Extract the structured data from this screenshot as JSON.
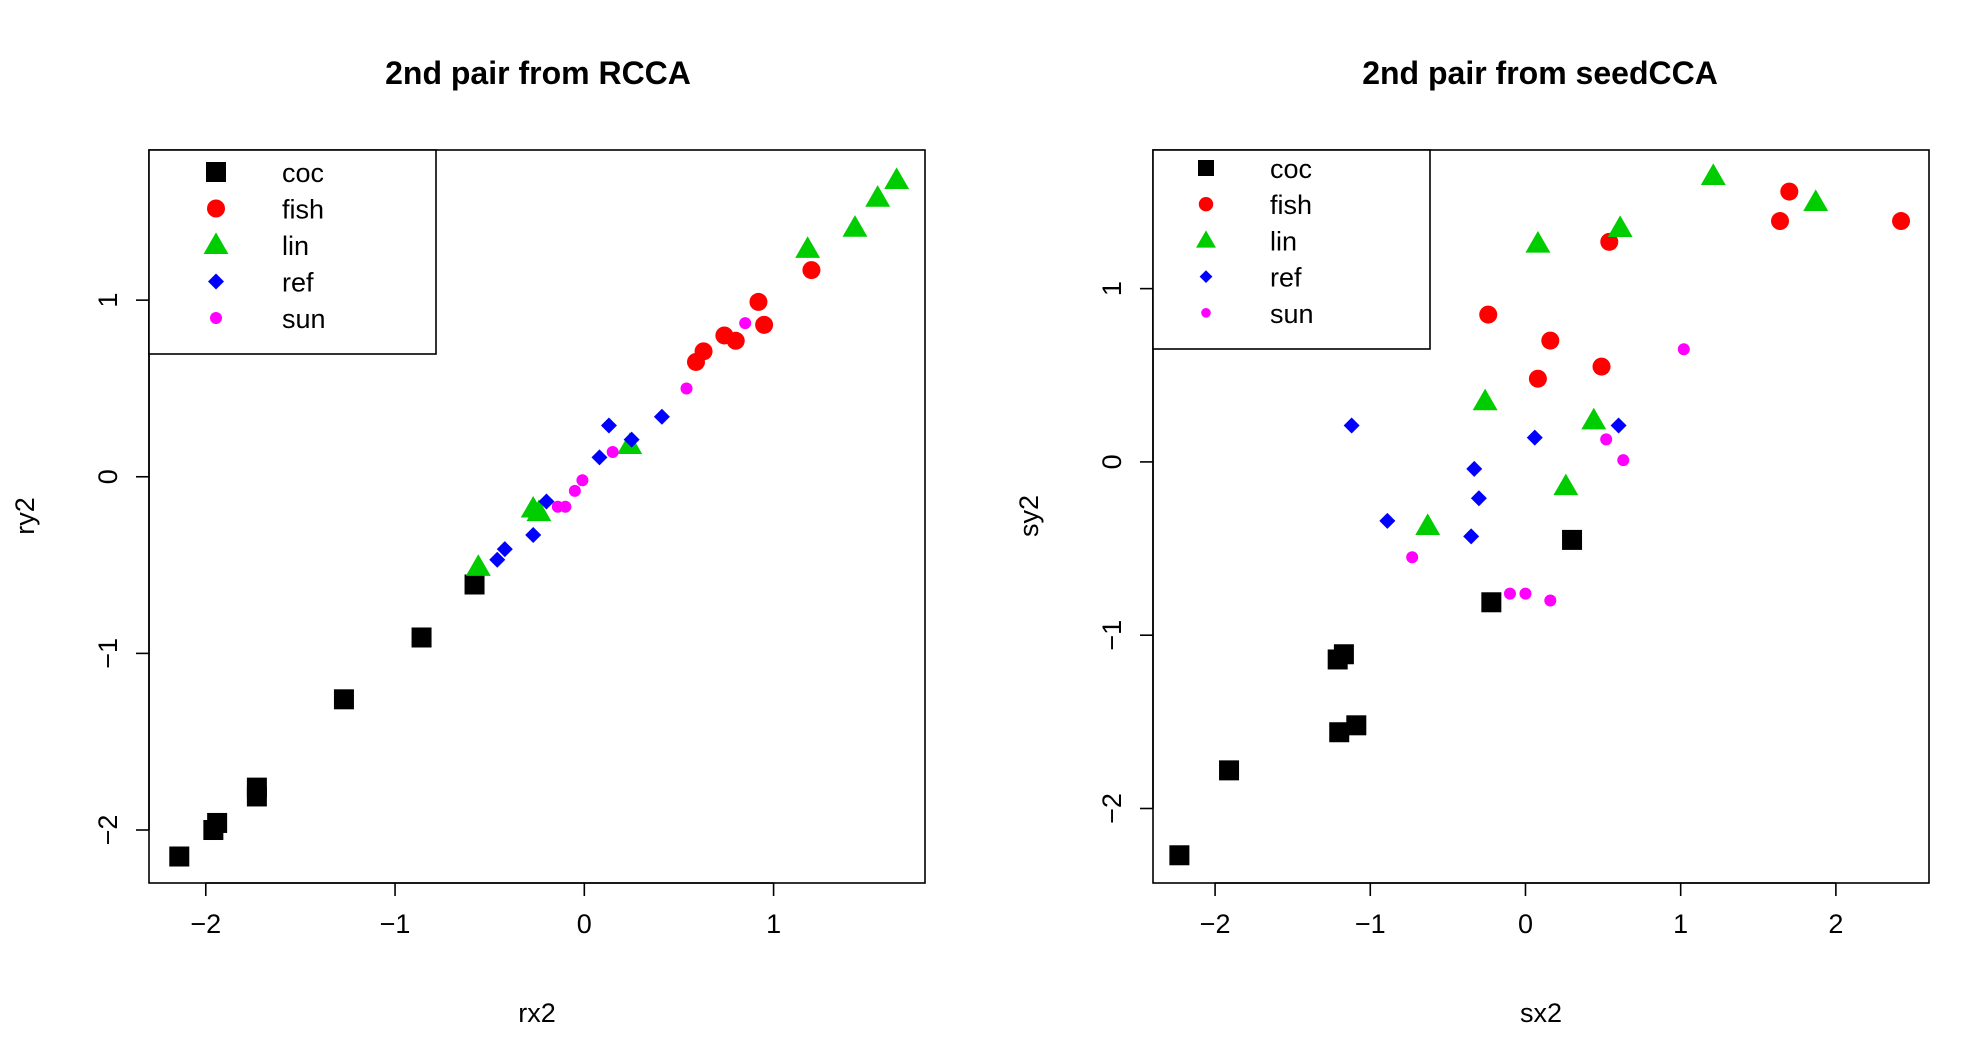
{
  "chart_data": [
    {
      "type": "scatter",
      "title": "2nd pair from RCCA",
      "xlabel": "rx2",
      "ylabel": "ry2",
      "xlim": [
        -2.3,
        1.8
      ],
      "ylim": [
        -2.3,
        1.85
      ],
      "xticks": [
        -2,
        -1,
        0,
        1
      ],
      "xtick_labels": [
        "−2",
        "−1",
        "0",
        "1"
      ],
      "yticks": [
        -2,
        -1,
        0,
        1
      ],
      "ytick_labels": [
        "−2",
        "−1",
        "0",
        "1"
      ],
      "grid": false,
      "legend_position": "top-left",
      "series": [
        {
          "name": "coc",
          "marker": "square",
          "color": "#000000",
          "points": [
            [
              -2.14,
              -2.15
            ],
            [
              -1.96,
              -2.0
            ],
            [
              -1.94,
              -1.96
            ],
            [
              -1.73,
              -1.76
            ],
            [
              -1.73,
              -1.81
            ],
            [
              -1.27,
              -1.26
            ],
            [
              -0.86,
              -0.91
            ],
            [
              -0.58,
              -0.61
            ]
          ]
        },
        {
          "name": "fish",
          "marker": "circle",
          "color": "#ff0000",
          "points": [
            [
              0.59,
              0.65
            ],
            [
              0.63,
              0.71
            ],
            [
              0.74,
              0.8
            ],
            [
              0.8,
              0.77
            ],
            [
              0.92,
              0.99
            ],
            [
              0.95,
              0.86
            ],
            [
              1.2,
              1.17
            ]
          ]
        },
        {
          "name": "lin",
          "marker": "triangle",
          "color": "#00cd00",
          "points": [
            [
              -0.56,
              -0.51
            ],
            [
              -0.27,
              -0.18
            ],
            [
              -0.24,
              -0.2
            ],
            [
              0.24,
              0.18
            ],
            [
              1.18,
              1.29
            ],
            [
              1.43,
              1.41
            ],
            [
              1.55,
              1.58
            ],
            [
              1.65,
              1.68
            ]
          ]
        },
        {
          "name": "ref",
          "marker": "diamond",
          "color": "#0000ff",
          "points": [
            [
              -0.46,
              -0.47
            ],
            [
              -0.42,
              -0.41
            ],
            [
              -0.27,
              -0.33
            ],
            [
              -0.2,
              -0.14
            ],
            [
              0.08,
              0.11
            ],
            [
              0.13,
              0.29
            ],
            [
              0.25,
              0.21
            ],
            [
              0.41,
              0.34
            ]
          ]
        },
        {
          "name": "sun",
          "marker": "dot",
          "color": "#ff00ff",
          "points": [
            [
              -0.14,
              -0.17
            ],
            [
              -0.1,
              -0.17
            ],
            [
              -0.05,
              -0.08
            ],
            [
              -0.01,
              -0.02
            ],
            [
              0.15,
              0.14
            ],
            [
              0.54,
              0.5
            ],
            [
              0.85,
              0.87
            ]
          ]
        }
      ]
    },
    {
      "type": "scatter",
      "title": "2nd pair from seedCCA",
      "xlabel": "sx2",
      "ylabel": "sy2",
      "xlim": [
        -2.4,
        2.6
      ],
      "ylim": [
        -2.43,
        1.8
      ],
      "xticks": [
        -2,
        -1,
        0,
        1,
        2
      ],
      "xtick_labels": [
        "−2",
        "−1",
        "0",
        "1",
        "2"
      ],
      "yticks": [
        -2,
        -1,
        0,
        1
      ],
      "ytick_labels": [
        "−2",
        "−1",
        "0",
        "1"
      ],
      "grid": false,
      "legend_position": "top-left",
      "series": [
        {
          "name": "coc",
          "marker": "square",
          "color": "#000000",
          "points": [
            [
              -2.23,
              -2.27
            ],
            [
              -1.91,
              -1.78
            ],
            [
              -1.21,
              -1.14
            ],
            [
              -1.17,
              -1.11
            ],
            [
              -1.2,
              -1.56
            ],
            [
              -1.09,
              -1.52
            ],
            [
              -0.22,
              -0.81
            ],
            [
              0.3,
              -0.45
            ]
          ]
        },
        {
          "name": "fish",
          "marker": "circle",
          "color": "#ff0000",
          "points": [
            [
              -0.24,
              0.85
            ],
            [
              0.08,
              0.48
            ],
            [
              0.16,
              0.7
            ],
            [
              0.49,
              0.55
            ],
            [
              0.54,
              1.27
            ],
            [
              1.64,
              1.39
            ],
            [
              1.7,
              1.56
            ],
            [
              2.42,
              1.39
            ]
          ]
        },
        {
          "name": "lin",
          "marker": "triangle",
          "color": "#00cd00",
          "points": [
            [
              -0.63,
              -0.37
            ],
            [
              -0.26,
              0.35
            ],
            [
              0.08,
              1.26
            ],
            [
              0.26,
              -0.14
            ],
            [
              0.44,
              0.24
            ],
            [
              0.61,
              1.35
            ],
            [
              1.21,
              1.65
            ],
            [
              1.87,
              1.5
            ]
          ]
        },
        {
          "name": "ref",
          "marker": "diamond",
          "color": "#0000ff",
          "points": [
            [
              -1.12,
              0.21
            ],
            [
              -0.89,
              -0.34
            ],
            [
              -0.35,
              -0.43
            ],
            [
              -0.33,
              -0.04
            ],
            [
              -0.3,
              -0.21
            ],
            [
              0.06,
              0.14
            ],
            [
              0.6,
              0.21
            ]
          ]
        },
        {
          "name": "sun",
          "marker": "dot",
          "color": "#ff00ff",
          "points": [
            [
              -0.73,
              -0.55
            ],
            [
              -0.1,
              -0.76
            ],
            [
              0.0,
              -0.76
            ],
            [
              0.16,
              -0.8
            ],
            [
              0.52,
              0.13
            ],
            [
              0.63,
              0.01
            ],
            [
              1.02,
              0.65
            ]
          ]
        }
      ]
    }
  ]
}
